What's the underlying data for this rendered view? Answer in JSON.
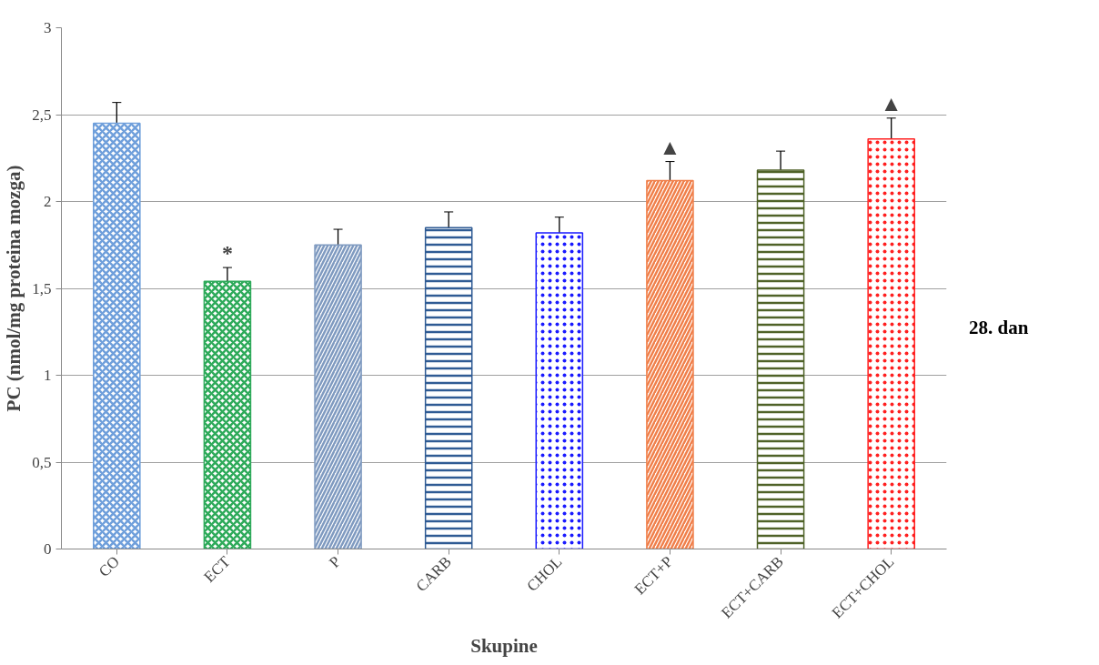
{
  "chart_data": {
    "type": "bar",
    "xlabel": "Skupine",
    "ylabel": "PC (nmol/mg proteina mozga)",
    "categories": [
      "CO",
      "ECT",
      "P",
      "CARB",
      "CHOL",
      "ECT+P",
      "ECT+CARB",
      "ECT+CHOL"
    ],
    "values": [
      2.45,
      1.54,
      1.75,
      1.85,
      1.82,
      2.12,
      2.18,
      2.36
    ],
    "errors": [
      0.12,
      0.08,
      0.09,
      0.09,
      0.09,
      0.11,
      0.11,
      0.12
    ],
    "colors": [
      "#6f9fdb",
      "#2eaa5a",
      "#7f9ac0",
      "#2f5b94",
      "#1a1aff",
      "#f07f4a",
      "#4f6228",
      "#ff2020"
    ],
    "ylim": [
      0,
      3
    ],
    "yticks": [
      0,
      {
        "value": 0.5,
        "label": "0,5"
      },
      1,
      {
        "value": 1.5,
        "label": "1,5"
      },
      2,
      {
        "value": 2.5,
        "label": "2,5"
      },
      3
    ],
    "grid": "y",
    "annotations": [
      {
        "text": "*",
        "x": "ECT",
        "y": 1.54
      },
      {
        "text": "▲",
        "x": "ECT+P",
        "y": 2.12
      },
      {
        "text": "▲",
        "x": "ECT+CHOL",
        "y": 2.36
      },
      "28. dan"
    ]
  }
}
